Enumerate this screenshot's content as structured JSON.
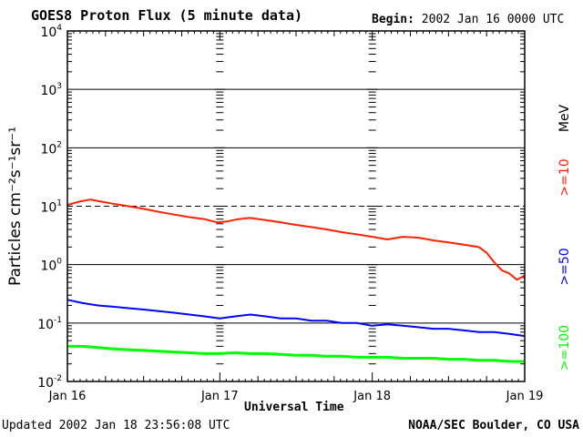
{
  "header": {
    "title": "GOES8 Proton Flux (5 minute data)",
    "begin_label": "Begin:",
    "begin_value": "2002 Jan 16 0000 UTC"
  },
  "footer": {
    "updated_label": "Updated",
    "updated_value": "2002 Jan 18 23:56:08 UTC",
    "credit": "NOAA/SEC Boulder, CO USA"
  },
  "chart_data": {
    "type": "line",
    "title": "GOES8 Proton Flux (5 minute data)",
    "xlabel": "Universal Time",
    "ylabel": "Particles cm⁻²s⁻¹sr⁻¹",
    "y_scale": "log",
    "ylim": [
      0.01,
      10000
    ],
    "y_ticks": [
      {
        "base": "10",
        "exp": "-2"
      },
      {
        "base": "10",
        "exp": "-1"
      },
      {
        "base": "10",
        "exp": "0"
      },
      {
        "base": "10",
        "exp": "1"
      },
      {
        "base": "10",
        "exp": "2"
      },
      {
        "base": "10",
        "exp": "3"
      },
      {
        "base": "10",
        "exp": "4"
      }
    ],
    "x_ticks": [
      "Jan 16",
      "Jan 17",
      "Jan 18",
      "Jan 19"
    ],
    "xlim_days": [
      0,
      3
    ],
    "grid": true,
    "dashed_level": 10,
    "legend_unit": "MeV",
    "series": [
      {
        "name": ">=10",
        "color": "#ff2200",
        "x": [
          0.0,
          0.08,
          0.15,
          0.22,
          0.3,
          0.4,
          0.5,
          0.6,
          0.7,
          0.8,
          0.9,
          0.98,
          1.05,
          1.12,
          1.2,
          1.3,
          1.4,
          1.5,
          1.6,
          1.7,
          1.8,
          1.9,
          2.0,
          2.1,
          2.2,
          2.3,
          2.4,
          2.5,
          2.6,
          2.7,
          2.75,
          2.8,
          2.85,
          2.9,
          2.95,
          3.0
        ],
        "values": [
          10.5,
          12.0,
          13.0,
          12.0,
          11.0,
          10.0,
          9.0,
          8.0,
          7.2,
          6.5,
          6.0,
          5.3,
          5.5,
          6.0,
          6.3,
          5.8,
          5.3,
          4.8,
          4.4,
          4.0,
          3.6,
          3.3,
          3.0,
          2.7,
          3.0,
          2.9,
          2.6,
          2.4,
          2.2,
          2.0,
          1.6,
          1.1,
          0.8,
          0.7,
          0.55,
          0.65
        ]
      },
      {
        "name": ">=50",
        "color": "#0000ff",
        "x": [
          0.0,
          0.1,
          0.2,
          0.3,
          0.4,
          0.5,
          0.6,
          0.7,
          0.8,
          0.9,
          1.0,
          1.1,
          1.2,
          1.3,
          1.4,
          1.5,
          1.6,
          1.7,
          1.8,
          1.9,
          2.0,
          2.1,
          2.2,
          2.3,
          2.4,
          2.5,
          2.6,
          2.7,
          2.8,
          2.9,
          3.0
        ],
        "values": [
          0.25,
          0.22,
          0.2,
          0.19,
          0.18,
          0.17,
          0.16,
          0.15,
          0.14,
          0.13,
          0.12,
          0.13,
          0.14,
          0.13,
          0.12,
          0.12,
          0.11,
          0.11,
          0.1,
          0.1,
          0.09,
          0.095,
          0.09,
          0.085,
          0.08,
          0.08,
          0.075,
          0.07,
          0.07,
          0.065,
          0.06
        ]
      },
      {
        "name": ">=100",
        "color": "#00ff00",
        "x": [
          0.0,
          0.1,
          0.2,
          0.3,
          0.4,
          0.5,
          0.6,
          0.7,
          0.8,
          0.9,
          1.0,
          1.1,
          1.2,
          1.3,
          1.4,
          1.5,
          1.6,
          1.7,
          1.8,
          1.9,
          2.0,
          2.1,
          2.2,
          2.3,
          2.4,
          2.5,
          2.6,
          2.7,
          2.8,
          2.9,
          3.0
        ],
        "values": [
          0.04,
          0.04,
          0.038,
          0.036,
          0.035,
          0.034,
          0.033,
          0.032,
          0.031,
          0.03,
          0.03,
          0.031,
          0.03,
          0.03,
          0.029,
          0.028,
          0.028,
          0.027,
          0.027,
          0.026,
          0.026,
          0.026,
          0.025,
          0.025,
          0.025,
          0.024,
          0.024,
          0.023,
          0.023,
          0.022,
          0.022
        ]
      }
    ]
  }
}
